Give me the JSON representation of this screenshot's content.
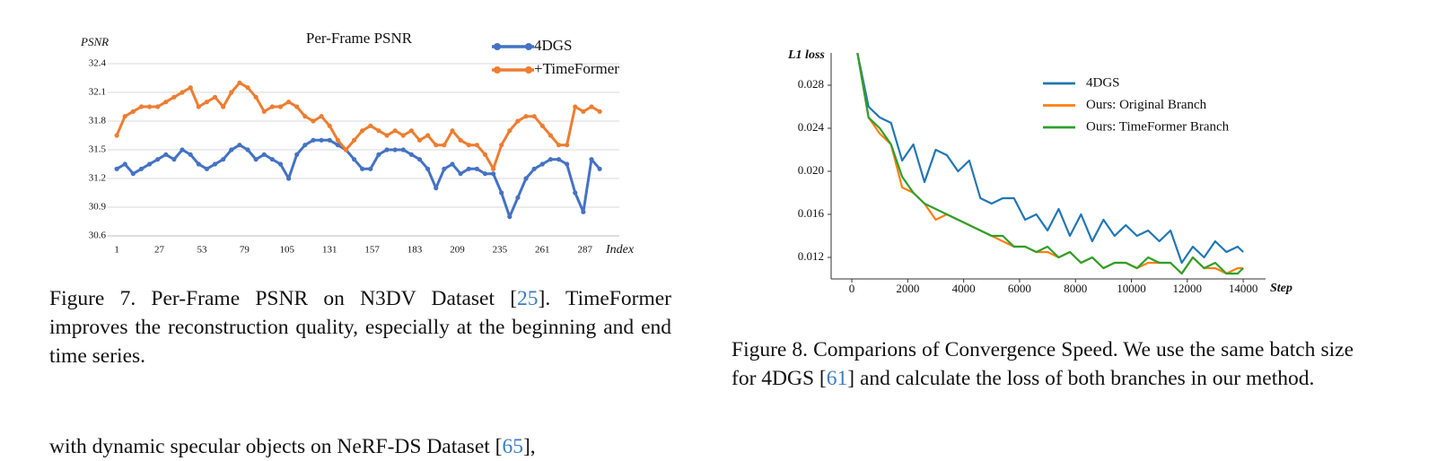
{
  "chart_data": [
    {
      "type": "line",
      "title": "Per-Frame PSNR",
      "y_label": "PSNR",
      "x_label": "Index",
      "x": [
        1,
        6,
        11,
        16,
        21,
        26,
        31,
        36,
        41,
        46,
        51,
        56,
        61,
        66,
        71,
        76,
        81,
        86,
        91,
        96,
        101,
        106,
        111,
        116,
        121,
        126,
        131,
        136,
        141,
        146,
        151,
        156,
        161,
        166,
        171,
        176,
        181,
        186,
        191,
        196,
        201,
        206,
        211,
        216,
        221,
        226,
        231,
        236,
        241,
        246,
        251,
        256,
        261,
        266,
        271,
        276,
        281,
        286,
        291,
        296
      ],
      "series": [
        {
          "name": "4DGS",
          "color": "#4472c4",
          "values": [
            31.3,
            31.35,
            31.25,
            31.3,
            31.35,
            31.4,
            31.45,
            31.4,
            31.5,
            31.45,
            31.35,
            31.3,
            31.35,
            31.4,
            31.5,
            31.55,
            31.5,
            31.4,
            31.45,
            31.4,
            31.35,
            31.2,
            31.45,
            31.55,
            31.6,
            31.6,
            31.6,
            31.55,
            31.5,
            31.4,
            31.3,
            31.3,
            31.45,
            31.5,
            31.5,
            31.5,
            31.45,
            31.4,
            31.3,
            31.1,
            31.3,
            31.35,
            31.25,
            31.3,
            31.3,
            31.25,
            31.25,
            31.05,
            30.8,
            31.0,
            31.2,
            31.3,
            31.35,
            31.4,
            31.4,
            31.35,
            31.05,
            30.85,
            31.4,
            31.3
          ]
        },
        {
          "name": "+TimeFormer",
          "color": "#ed7d31",
          "values": [
            31.65,
            31.85,
            31.9,
            31.95,
            31.95,
            31.95,
            32.0,
            32.05,
            32.1,
            32.15,
            31.95,
            32.0,
            32.05,
            31.95,
            32.1,
            32.2,
            32.15,
            32.05,
            31.9,
            31.95,
            31.95,
            32.0,
            31.95,
            31.85,
            31.8,
            31.85,
            31.75,
            31.6,
            31.5,
            31.6,
            31.7,
            31.75,
            31.7,
            31.65,
            31.7,
            31.65,
            31.7,
            31.6,
            31.65,
            31.55,
            31.55,
            31.7,
            31.6,
            31.55,
            31.55,
            31.45,
            31.3,
            31.55,
            31.7,
            31.8,
            31.85,
            31.85,
            31.75,
            31.65,
            31.55,
            31.55,
            31.95,
            31.9,
            31.95,
            31.9
          ]
        }
      ],
      "xlim": [
        -4,
        308
      ],
      "xticks": [
        1,
        27,
        53,
        79,
        105,
        131,
        157,
        183,
        209,
        235,
        261,
        287
      ],
      "ylim": [
        30.6,
        32.4
      ],
      "yticks": [
        30.6,
        30.9,
        31.2,
        31.5,
        31.8,
        32.1,
        32.4
      ],
      "grid": true,
      "markers": true,
      "legend": "top-right"
    },
    {
      "type": "line",
      "y_label": "L1 loss",
      "x_label": "Step",
      "x": [
        200,
        600,
        1000,
        1400,
        1800,
        2200,
        2600,
        3000,
        3400,
        3800,
        4200,
        4600,
        5000,
        5400,
        5800,
        6200,
        6600,
        7000,
        7400,
        7800,
        8200,
        8600,
        9000,
        9400,
        9800,
        10200,
        10600,
        11000,
        11400,
        11800,
        12200,
        12600,
        13000,
        13400,
        13800,
        14000
      ],
      "series": [
        {
          "name": "4DGS",
          "color": "#1f77b4",
          "values": [
            0.031,
            0.026,
            0.025,
            0.0245,
            0.021,
            0.0225,
            0.019,
            0.022,
            0.0215,
            0.02,
            0.021,
            0.0175,
            0.017,
            0.0175,
            0.0175,
            0.0155,
            0.016,
            0.0145,
            0.0165,
            0.014,
            0.016,
            0.0135,
            0.0155,
            0.014,
            0.015,
            0.014,
            0.0145,
            0.0135,
            0.0145,
            0.0115,
            0.013,
            0.012,
            0.0135,
            0.0125,
            0.013,
            0.0125
          ]
        },
        {
          "name": "Ours: Original Branch",
          "color": "#ff7f0e",
          "values": [
            0.031,
            0.025,
            0.0235,
            0.0225,
            0.0185,
            0.018,
            0.017,
            0.0155,
            0.016,
            0.0155,
            0.015,
            0.0145,
            0.014,
            0.0135,
            0.013,
            0.013,
            0.0125,
            0.0125,
            0.012,
            0.0125,
            0.0115,
            0.012,
            0.011,
            0.0115,
            0.0115,
            0.011,
            0.0115,
            0.0115,
            0.0115,
            0.0105,
            0.012,
            0.011,
            0.011,
            0.0105,
            0.011,
            0.011
          ]
        },
        {
          "name": "Ours: TimeFormer Branch",
          "color": "#2ca02c",
          "values": [
            0.031,
            0.025,
            0.024,
            0.0225,
            0.0195,
            0.018,
            0.017,
            0.0165,
            0.016,
            0.0155,
            0.015,
            0.0145,
            0.014,
            0.014,
            0.013,
            0.013,
            0.0125,
            0.013,
            0.012,
            0.0125,
            0.0115,
            0.012,
            0.011,
            0.0115,
            0.0115,
            0.011,
            0.012,
            0.0115,
            0.0115,
            0.0105,
            0.012,
            0.011,
            0.0115,
            0.0105,
            0.0105,
            0.011
          ]
        }
      ],
      "xlim": [
        -740,
        14800
      ],
      "xticks": [
        0,
        2000,
        4000,
        6000,
        8000,
        10000,
        12000,
        14000
      ],
      "ylim": [
        0.01,
        0.031
      ],
      "yticks": [
        0.012,
        0.016,
        {
          "value": 0.02,
          "label": "0.020"
        },
        0.024,
        0.028
      ],
      "grid": false,
      "markers": false,
      "legend": "top-right"
    }
  ],
  "captions": [
    {
      "before": "Figure 7. Per-Frame PSNR on N3DV Dataset [",
      "ref": "25",
      "after": "]. TimeFormer improves the reconstruction quality, especially at the beginning and end time series."
    },
    {
      "before": "Figure 8. Comparions of Convergence Speed. We use the same batch size for 4DGS [",
      "ref": "61",
      "after": "] and calculate the loss of both branches in our method."
    }
  ],
  "body_text": {
    "before": "with dynamic specular objects on NeRF-DS Dataset [",
    "ref": "65",
    "after": "],"
  }
}
